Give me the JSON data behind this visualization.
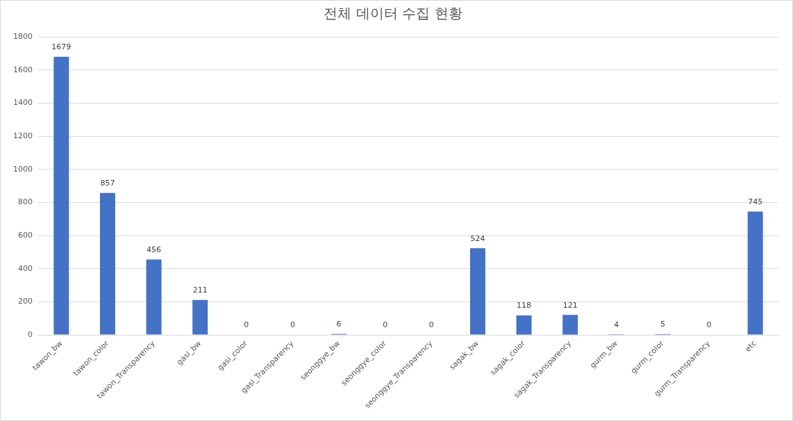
{
  "chart_data": {
    "type": "bar",
    "title": "전체 데이터 수집 현황",
    "categories": [
      "tawon_bw",
      "tawon_color",
      "tawon_Transparency",
      "gasi_bw",
      "gasi_color",
      "gasi_Transparency",
      "seonggye_bw",
      "seonggye_color",
      "seonggye_Transparency",
      "sagak_bw",
      "sagak_color",
      "sagak_Transparency",
      "gurm_bw",
      "gurm_color",
      "gurm_Transparency",
      "etc"
    ],
    "values": [
      1679,
      857,
      456,
      211,
      0,
      0,
      6,
      0,
      0,
      524,
      118,
      121,
      4,
      5,
      0,
      745
    ],
    "color": "#4472c4",
    "ylim": [
      0,
      1800
    ],
    "yticks": [
      0,
      200,
      400,
      600,
      800,
      1000,
      1200,
      1400,
      1600,
      1800
    ],
    "grid": "y",
    "data_labels": true,
    "legend": false
  }
}
